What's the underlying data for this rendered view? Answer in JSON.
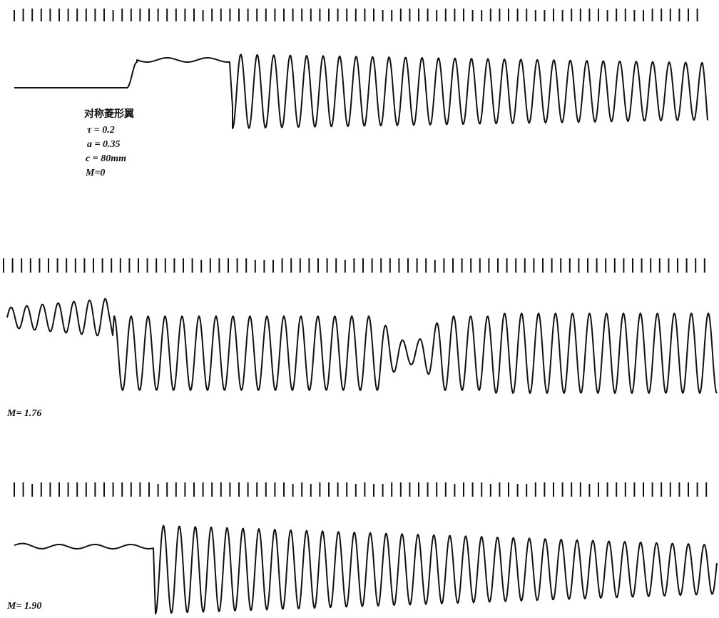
{
  "panels": [
    {
      "labels": [
        "对称菱形翼",
        "τ = 0.2",
        "a = 0.35",
        "c = 80mm",
        "M=0"
      ]
    },
    {
      "labels": [
        "M= 1.76"
      ]
    },
    {
      "labels": [
        "M= 1.90"
      ]
    }
  ]
}
